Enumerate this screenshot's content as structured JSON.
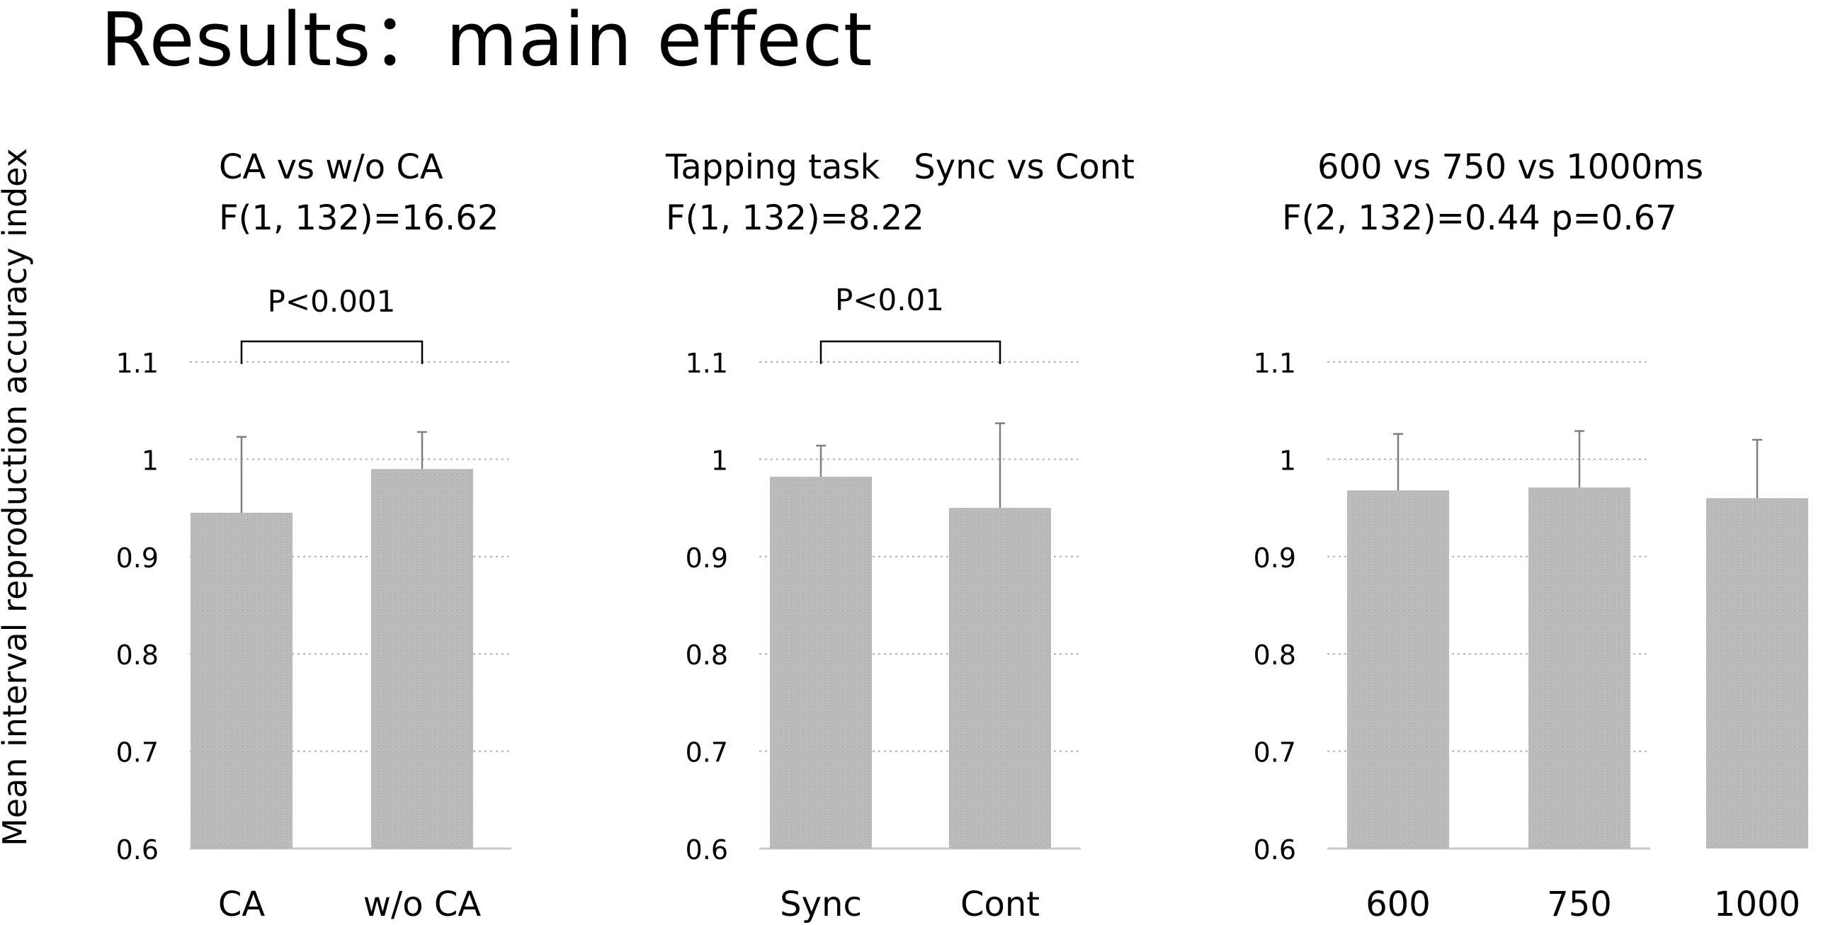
{
  "slide_title": "Results：main effect",
  "y_axis_label": "Mean interval reproduction accuracy index",
  "colors": {
    "bar": "#bdbdbd",
    "bar_hatch": "#a8a8a8",
    "grid": "#b0b0b0",
    "error": "#7f7f7f",
    "bracket": "#000000"
  },
  "chart_data": [
    {
      "type": "bar",
      "title": "CA vs w/o CA",
      "stat": "F(1, 132)=16.62",
      "categories": [
        "CA",
        "w/o CA"
      ],
      "values": [
        0.945,
        0.99
      ],
      "errors": [
        0.078,
        0.038
      ],
      "ylim": [
        0.6,
        1.1
      ],
      "yticks": [
        "1.1",
        "1",
        "0.9",
        "0.8",
        "0.7",
        "0.6"
      ],
      "significance": "P<0.001",
      "grid": true
    },
    {
      "type": "bar",
      "title": "Tapping task　Sync vs Cont",
      "stat": "F(1, 132)=8.22",
      "categories": [
        "Sync",
        "Cont"
      ],
      "values": [
        0.982,
        0.95
      ],
      "errors": [
        0.032,
        0.087
      ],
      "ylim": [
        0.6,
        1.1
      ],
      "yticks": [
        "1.1",
        "1",
        "0.9",
        "0.8",
        "0.7",
        "0.6"
      ],
      "significance": "P<0.01",
      "grid": true
    },
    {
      "type": "bar",
      "title": "600 vs 750 vs 1000ms",
      "stat": "F(2, 132)=0.44 p=0.67",
      "categories": [
        "600",
        "750",
        "1000"
      ],
      "values": [
        0.968,
        0.971,
        0.96
      ],
      "errors": [
        0.058,
        0.058,
        0.06
      ],
      "ylim": [
        0.6,
        1.1
      ],
      "yticks": [
        "1.1",
        "1",
        "0.9",
        "0.8",
        "0.7",
        "0.6"
      ],
      "significance": "",
      "grid": true
    }
  ]
}
